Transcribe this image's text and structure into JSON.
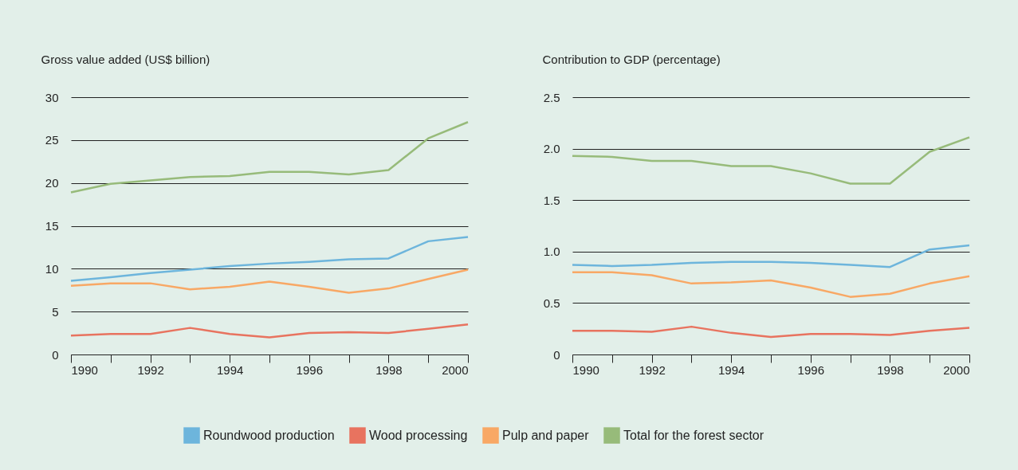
{
  "chart_data": [
    {
      "type": "line",
      "ylabel": "Gross value added (US$ billion)",
      "x": [
        1990,
        1991,
        1992,
        1993,
        1994,
        1995,
        1996,
        1997,
        1998,
        1999,
        2000
      ],
      "xlim": [
        1990,
        2000
      ],
      "xticks": [
        1990,
        {
          "value": 1991,
          "label": null
        },
        1992,
        {
          "value": 1993,
          "label": null
        },
        1994,
        {
          "value": 1995,
          "label": null
        },
        1996,
        {
          "value": 1997,
          "label": null
        },
        1998,
        {
          "value": 1999,
          "label": null
        },
        2000
      ],
      "ylim": [
        0,
        30
      ],
      "yticks": [
        0,
        5,
        10,
        15,
        20,
        25,
        30
      ],
      "grid": "y",
      "legend": "bottom",
      "series": [
        {
          "name": "Roundwood production",
          "color": "#6db5dc",
          "values": [
            8.6,
            9.0,
            9.5,
            9.9,
            10.3,
            10.6,
            10.8,
            11.1,
            11.2,
            13.2,
            13.7
          ]
        },
        {
          "name": "Wood processing",
          "color": "#e8735f",
          "values": [
            2.2,
            2.4,
            2.4,
            3.1,
            2.4,
            2.0,
            2.5,
            2.6,
            2.5,
            3.0,
            3.5
          ]
        },
        {
          "name": "Pulp and paper",
          "color": "#f8a865",
          "values": [
            8.0,
            8.3,
            8.3,
            7.6,
            7.9,
            8.5,
            7.9,
            7.2,
            7.7,
            8.8,
            9.9
          ]
        },
        {
          "name": "Total for the forest sector",
          "color": "#97bb7a",
          "values": [
            18.9,
            19.9,
            20.3,
            20.7,
            20.8,
            21.3,
            21.3,
            21.0,
            21.5,
            25.2,
            27.1
          ]
        }
      ]
    },
    {
      "type": "line",
      "ylabel": "Contribution to GDP (percentage)",
      "x": [
        1990,
        1991,
        1992,
        1993,
        1994,
        1995,
        1996,
        1997,
        1998,
        1999,
        2000
      ],
      "xlim": [
        1990,
        2000
      ],
      "xticks": [
        1990,
        {
          "value": 1991,
          "label": null
        },
        1992,
        {
          "value": 1993,
          "label": null
        },
        1994,
        {
          "value": 1995,
          "label": null
        },
        1996,
        {
          "value": 1997,
          "label": null
        },
        1998,
        {
          "value": 1999,
          "label": null
        },
        2000
      ],
      "ylim": [
        0,
        2.5
      ],
      "yticks": [
        0,
        {
          "value": 0.5,
          "label": "0.5"
        },
        {
          "value": 1,
          "label": "1.0"
        },
        {
          "value": 1.5,
          "label": "1.5"
        },
        {
          "value": 2,
          "label": "2.0"
        },
        {
          "value": 2.5,
          "label": "2.5"
        }
      ],
      "grid": "y",
      "series": [
        {
          "color": "#6db5dc",
          "values": [
            0.87,
            0.86,
            0.87,
            0.89,
            0.9,
            0.9,
            0.89,
            0.87,
            0.85,
            1.02,
            1.06
          ]
        },
        {
          "color": "#e8735f",
          "values": [
            0.23,
            0.23,
            0.22,
            0.27,
            0.21,
            0.17,
            0.2,
            0.2,
            0.19,
            0.23,
            0.26
          ]
        },
        {
          "color": "#f8a865",
          "values": [
            0.8,
            0.8,
            0.77,
            0.69,
            0.7,
            0.72,
            0.65,
            0.56,
            0.59,
            0.69,
            0.76
          ]
        },
        {
          "color": "#97bb7a",
          "values": [
            1.93,
            1.92,
            1.88,
            1.88,
            1.83,
            1.83,
            1.76,
            1.66,
            1.66,
            1.97,
            2.11
          ]
        }
      ]
    }
  ]
}
